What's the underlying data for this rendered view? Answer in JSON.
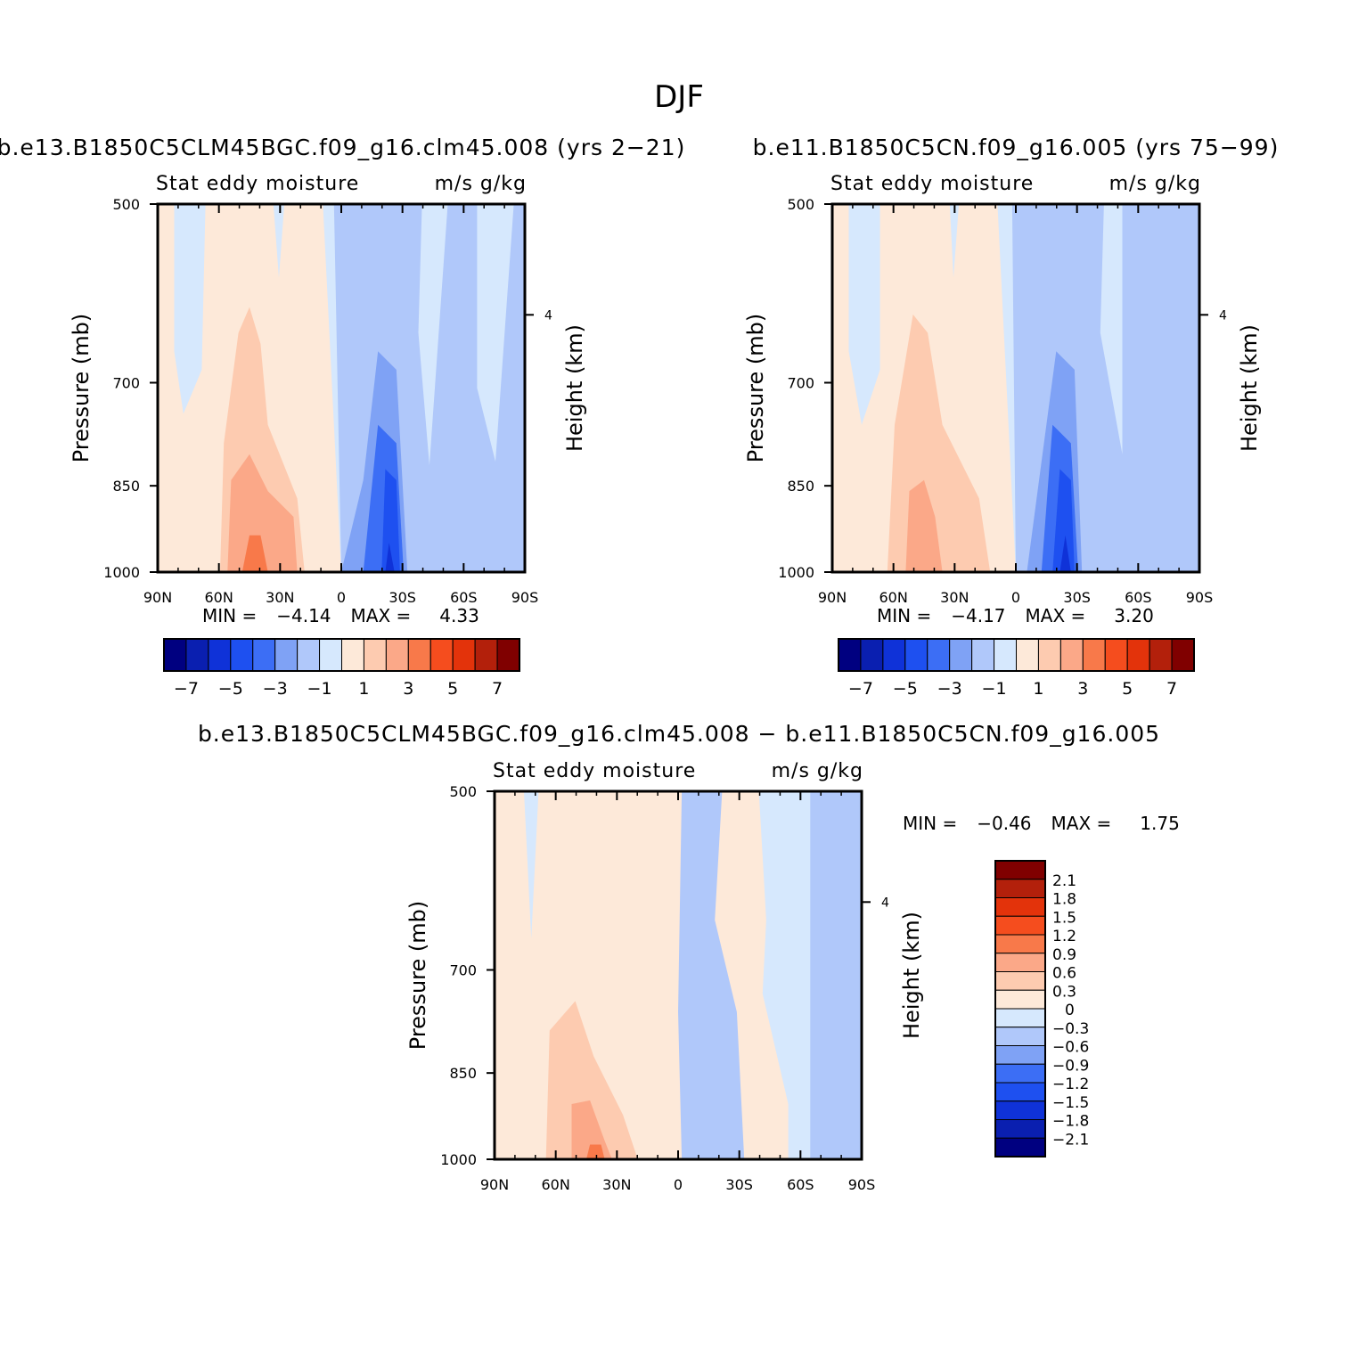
{
  "figure": {
    "title": "DJF",
    "colors": {
      "blue_levels": [
        "#000080",
        "#0a1fb0",
        "#0f32d8",
        "#1e50f0",
        "#3c6ef5",
        "#7fa2f5",
        "#b0c8fa",
        "#d6e8fd"
      ],
      "red_levels": [
        "#fde9d9",
        "#fdcbb0",
        "#fba888",
        "#f8794a",
        "#f54d1e",
        "#e3330b",
        "#b3200b",
        "#800000"
      ],
      "axis": "#000000"
    }
  },
  "chart_data": [
    {
      "type": "heatmap",
      "title": "b.e13.B1850C5CLM45BGC.f09_g16.clm45.008 (yrs 2-21)",
      "subtitle_left": "Stat eddy moisture",
      "subtitle_right": "m/s g/kg",
      "ylabel": "Pressure (mb)",
      "ylabel_right": "Height (km)",
      "x_ticks": [
        "90N",
        "60N",
        "30N",
        "0",
        "30S",
        "60S",
        "90S"
      ],
      "y_ticks": [
        "500",
        "700",
        "850",
        "1000"
      ],
      "right_ticks": [
        "4"
      ],
      "min_label": "MIN =",
      "min_value": "-4.14",
      "max_label": "MAX =",
      "max_value": "4.33",
      "colorbar_labels": [
        "-7",
        "-5",
        "-3",
        "-1",
        "1",
        "3",
        "5",
        "7"
      ],
      "colorbar_levels": [
        -7,
        -6,
        -5,
        -4,
        -3,
        -2,
        -1,
        0,
        1,
        2,
        3,
        4,
        5,
        6,
        7
      ]
    },
    {
      "type": "heatmap",
      "title": "b.e11.B1850C5CN.f09_g16.005 (yrs 75-99)",
      "subtitle_left": "Stat eddy moisture",
      "subtitle_right": "m/s g/kg",
      "ylabel": "Pressure (mb)",
      "ylabel_right": "Height (km)",
      "x_ticks": [
        "90N",
        "60N",
        "30N",
        "0",
        "30S",
        "60S",
        "90S"
      ],
      "y_ticks": [
        "500",
        "700",
        "850",
        "1000"
      ],
      "right_ticks": [
        "4"
      ],
      "min_label": "MIN =",
      "min_value": "-4.17",
      "max_label": "MAX =",
      "max_value": "3.20",
      "colorbar_labels": [
        "-7",
        "-5",
        "-3",
        "-1",
        "1",
        "3",
        "5",
        "7"
      ],
      "colorbar_levels": [
        -7,
        -6,
        -5,
        -4,
        -3,
        -2,
        -1,
        0,
        1,
        2,
        3,
        4,
        5,
        6,
        7
      ]
    },
    {
      "type": "heatmap",
      "title": "b.e13.B1850C5CLM45BGC.f09_g16.clm45.008 - b.e11.B1850C5CN.f09_g16.005",
      "subtitle_left": "Stat eddy moisture",
      "subtitle_right": "m/s g/kg",
      "ylabel": "Pressure (mb)",
      "ylabel_right": "Height (km)",
      "x_ticks": [
        "90N",
        "60N",
        "30N",
        "0",
        "30S",
        "60S",
        "90S"
      ],
      "y_ticks": [
        "500",
        "700",
        "850",
        "1000"
      ],
      "right_ticks": [
        "4"
      ],
      "min_label": "MIN =",
      "min_value": "-0.46",
      "max_label": "MAX =",
      "max_value": "1.75",
      "colorbar_labels": [
        "2.1",
        "1.8",
        "1.5",
        "1.2",
        "0.9",
        "0.6",
        "0.3",
        "0",
        "-0.3",
        "-0.6",
        "-0.9",
        "-1.2",
        "-1.5",
        "-1.8",
        "-2.1"
      ],
      "colorbar_levels": [
        -2.1,
        -1.8,
        -1.5,
        -1.2,
        -0.9,
        -0.6,
        -0.3,
        0,
        0.3,
        0.6,
        0.9,
        1.2,
        1.5,
        1.8,
        2.1
      ]
    }
  ]
}
